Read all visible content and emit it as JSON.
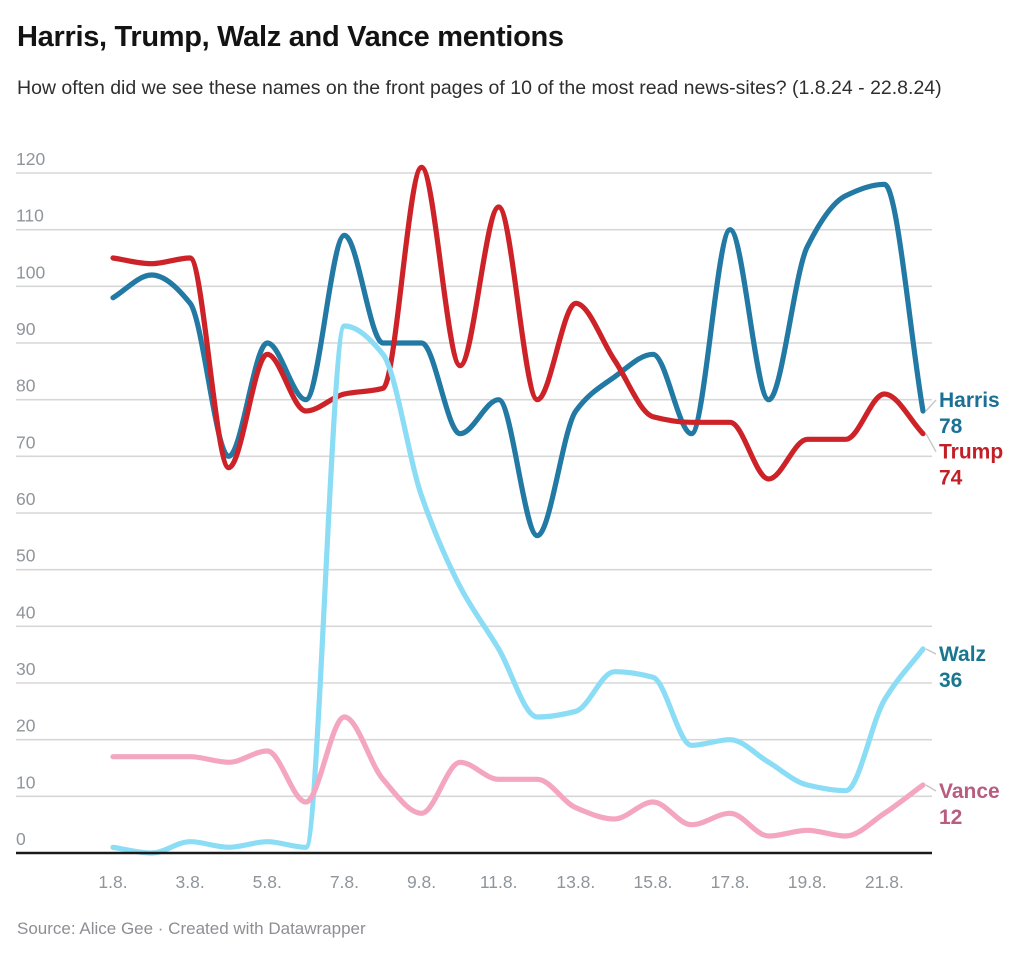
{
  "title": "Harris, Trump, Walz and Vance mentions",
  "subtitle": "How often did we see these names on the front pages of 10 of the most read news-sites? (1.8.24 - 22.8.24)",
  "footer": "Source: Alice Gee · Created with Datawrapper",
  "chart_data": {
    "type": "line",
    "title": "Harris, Trump, Walz and Vance mentions",
    "x_unit": "date (August 2024)",
    "x": [
      1,
      2,
      3,
      4,
      5,
      6,
      7,
      8,
      9,
      10,
      11,
      12,
      13,
      14,
      15,
      16,
      17,
      18,
      19,
      20,
      21,
      22
    ],
    "x_tick_labels": [
      {
        "day": 1,
        "label": "1.8."
      },
      {
        "day": 3,
        "label": "3.8."
      },
      {
        "day": 5,
        "label": "5.8."
      },
      {
        "day": 7,
        "label": "7.8."
      },
      {
        "day": 9,
        "label": "9.8."
      },
      {
        "day": 11,
        "label": "11.8."
      },
      {
        "day": 13,
        "label": "13.8."
      },
      {
        "day": 15,
        "label": "15.8."
      },
      {
        "day": 17,
        "label": "17.8."
      },
      {
        "day": 19,
        "label": "19.8."
      },
      {
        "day": 21,
        "label": "21.8."
      }
    ],
    "y_ticks": [
      0,
      10,
      20,
      30,
      40,
      50,
      60,
      70,
      80,
      90,
      100,
      110,
      120
    ],
    "ylim": [
      0,
      120
    ],
    "grid": true,
    "legend_position": "direct-right-labels",
    "line_style": "smooth",
    "series": [
      {
        "name": "Harris",
        "end_label": "78",
        "line_color": "#2179a4",
        "label_color": "#1b7096",
        "values": [
          98,
          102,
          97,
          70,
          90,
          80,
          109,
          90,
          90,
          74,
          80,
          56,
          78,
          84,
          88,
          74,
          110,
          80,
          107,
          116,
          118,
          78
        ]
      },
      {
        "name": "Trump",
        "end_label": "74",
        "line_color": "#cd2328",
        "label_color": "#c22027",
        "values": [
          105,
          104,
          105,
          68,
          88,
          78,
          81,
          82,
          121,
          86,
          114,
          80,
          97,
          87,
          77,
          76,
          76,
          66,
          73,
          73,
          81,
          74
        ]
      },
      {
        "name": "Walz",
        "end_label": "36",
        "line_color": "#8bdcf5",
        "label_color": "#18768f",
        "values": [
          1,
          0,
          2,
          1,
          2,
          1,
          93,
          88,
          63,
          47,
          36,
          24,
          25,
          32,
          31,
          19,
          20,
          16,
          12,
          11,
          27,
          36
        ]
      },
      {
        "name": "Vance",
        "end_label": "12",
        "line_color": "#f4a6c0",
        "label_color": "#b95c80",
        "values": [
          17,
          17,
          17,
          16,
          18,
          9,
          24,
          13,
          7,
          16,
          13,
          13,
          8,
          6,
          9,
          5,
          7,
          3,
          4,
          3,
          7,
          12
        ]
      }
    ],
    "axis_colors": {
      "gridline": "#d7d7d7",
      "baseline": "#1a1a1a",
      "tick_text": "#8f959a"
    }
  }
}
